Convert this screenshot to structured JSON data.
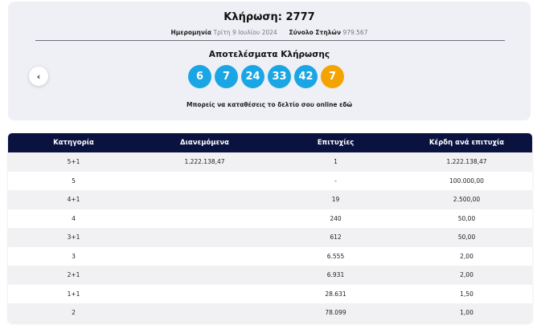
{
  "draw": {
    "title": "Κλήρωση: 2777",
    "date_label": "Ημερομηνία",
    "date_value": "Τρίτη 9 Ιουλίου 2024",
    "columns_label": "Σύνολο Στηλών",
    "columns_value": "979.567",
    "results_title": "Αποτελέσματα Κλήρωσης",
    "numbers": [
      "6",
      "7",
      "24",
      "33",
      "42"
    ],
    "bonus": "7",
    "bet_text": "Μπορείς να καταθέσεις το δελτίο σου online",
    "bet_link": "εδώ",
    "prev_icon": "‹"
  },
  "colors": {
    "ball": "#1aa6e4",
    "bonus_ball": "#f4a400",
    "header_bg": "#0a1240"
  },
  "table": {
    "headers": [
      "Κατηγορία",
      "Διανεμόμενα",
      "Επιτυχίες",
      "Κέρδη ανά επιτυχία"
    ],
    "rows": [
      [
        "5+1",
        "1.222.138,47",
        "1",
        "1.222.138,47"
      ],
      [
        "5",
        "",
        "-",
        "100.000,00"
      ],
      [
        "4+1",
        "",
        "19",
        "2.500,00"
      ],
      [
        "4",
        "",
        "240",
        "50,00"
      ],
      [
        "3+1",
        "",
        "612",
        "50,00"
      ],
      [
        "3",
        "",
        "6.555",
        "2,00"
      ],
      [
        "2+1",
        "",
        "6.931",
        "2,00"
      ],
      [
        "1+1",
        "",
        "28.631",
        "1,50"
      ],
      [
        "2",
        "",
        "78.099",
        "1,00"
      ]
    ]
  }
}
